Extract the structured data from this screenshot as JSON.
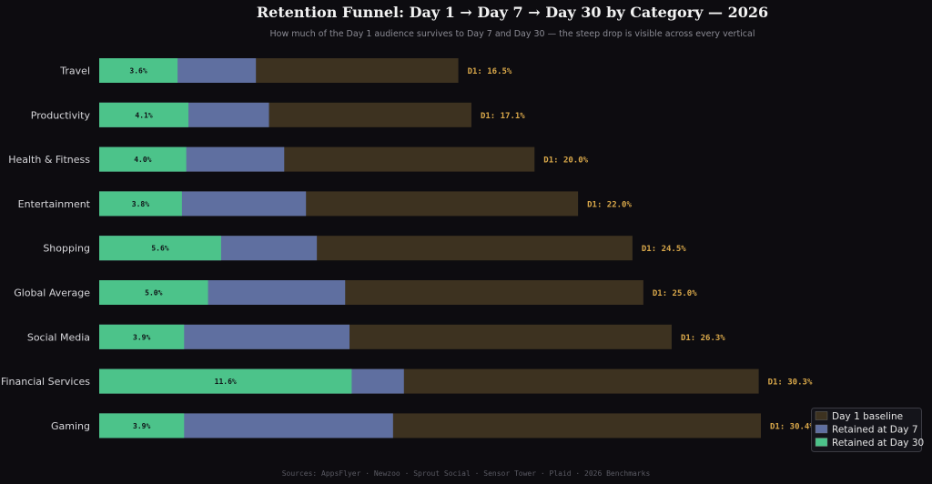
{
  "chart_data": {
    "type": "bar",
    "orientation": "horizontal",
    "stacking": "overlay",
    "title": "Retention Funnel: Day 1 → Day 7 → Day 30 by Category — 2026",
    "subtitle": "How much of the Day 1 audience survives to Day 7 and Day 30 — the steep drop is visible across every vertical",
    "source": "Sources: AppsFlyer · Newzoo · Sprout Social · Sensor Tower · Plaid · 2026 Benchmarks",
    "categories": [
      "Travel",
      "Productivity",
      "Health & Fitness",
      "Entertainment",
      "Shopping",
      "Global Average",
      "Social Media",
      "Financial Services",
      "Gaming"
    ],
    "series": [
      {
        "name": "Day 1 baseline",
        "color": "#3d3220",
        "values": [
          16.5,
          17.1,
          20.0,
          22.0,
          24.5,
          25.0,
          26.3,
          30.3,
          30.4
        ]
      },
      {
        "name": "Retained at Day 7",
        "color": "#5f6fa0",
        "values": [
          7.2,
          7.8,
          8.5,
          9.5,
          10.0,
          11.3,
          11.5,
          14.0,
          13.5
        ]
      },
      {
        "name": "Retained at Day 30",
        "color": "#4cc38a",
        "values": [
          3.6,
          4.1,
          4.0,
          3.8,
          5.6,
          5.0,
          3.9,
          11.6,
          3.9
        ]
      }
    ],
    "d1_label_prefix": "D1: ",
    "value_suffix": "%",
    "d1_label_color": "#d9a84a",
    "xlim": [
      0,
      30.4
    ],
    "legend_position": "bottom-right",
    "grid": false
  }
}
